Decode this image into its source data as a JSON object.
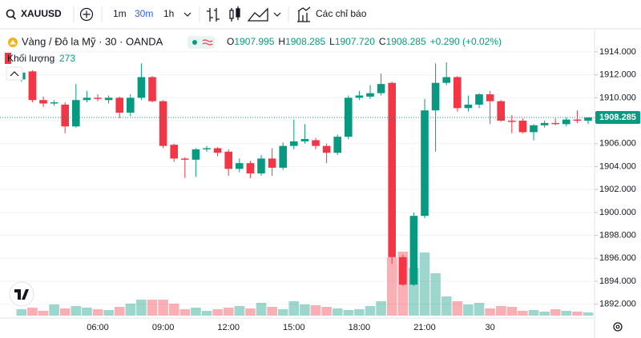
{
  "toolbar": {
    "symbol": "XAUUSD",
    "intervals": [
      "1m",
      "30m",
      "1h"
    ],
    "indicators": "Các chỉ báo"
  },
  "chart_data": {
    "type": "candlestick",
    "title": "Vàng / Đô la Mỹ · 30 · OANDA",
    "ohlc_legend": [
      {
        "key": "O",
        "value": "1907.995"
      },
      {
        "key": "H",
        "value": "1908.285"
      },
      {
        "key": "L",
        "value": "1907.720"
      },
      {
        "key": "C",
        "value": "1908.285"
      }
    ],
    "change": "+0.290 (+0.02%)",
    "volume_label": "Khối lượng",
    "up_color": "#089981",
    "down_color": "#f23645",
    "categories": [
      null,
      null,
      null,
      null,
      null,
      null,
      null,
      "06:00",
      null,
      null,
      null,
      null,
      null,
      "09:00",
      null,
      null,
      null,
      null,
      null,
      "12:00",
      null,
      null,
      null,
      null,
      null,
      "15:00",
      null,
      null,
      null,
      null,
      null,
      "18:00",
      null,
      null,
      null,
      null,
      null,
      "21:00",
      null,
      null,
      null,
      null,
      null,
      "30",
      null,
      null,
      null,
      null,
      null,
      null,
      null,
      null,
      null
    ],
    "open": [
      1911.6,
      1912.3,
      1909.8,
      1909.5,
      1909.4,
      1907.5,
      1909.8,
      1910.0,
      1909.8,
      1910.0,
      1908.7,
      1910.0,
      1911.8,
      1909.7,
      1905.9,
      1904.7,
      1904.6,
      1905.5,
      1905.6,
      1905.3,
      1903.8,
      1904.3,
      1903.4,
      1904.7,
      1903.9,
      1905.8,
      1906.2,
      1906.3,
      1905.8,
      1905.2,
      1906.6,
      1910.0,
      1910.1,
      1910.4,
      1911.3,
      1896.1,
      1893.7,
      1899.7,
      1908.9,
      1911.3,
      1911.8,
      1909.1,
      1909.4,
      1910.3,
      1909.7,
      1908.0,
      1908.0,
      1907.0,
      1907.6,
      1907.8,
      1907.7,
      1908.1,
      1907.995
    ],
    "high": [
      1912.4,
      1912.4,
      1910.1,
      1909.8,
      1909.6,
      1911.2,
      1910.6,
      1910.3,
      1910.2,
      1910.1,
      1910.3,
      1913.0,
      1911.9,
      1909.8,
      1906.0,
      1904.8,
      1905.6,
      1905.8,
      1905.7,
      1905.5,
      1904.7,
      1904.5,
      1905.0,
      1905.6,
      1906.1,
      1908.1,
      1907.7,
      1906.5,
      1906.0,
      1906.8,
      1910.2,
      1910.6,
      1911.1,
      1912.1,
      1911.4,
      1896.3,
      1900.0,
      1909.9,
      1913.0,
      1913.1,
      1911.9,
      1910.2,
      1910.4,
      1910.6,
      1909.8,
      1908.5,
      1908.2,
      1907.7,
      1908.0,
      1908.2,
      1908.3,
      1908.9,
      1908.285
    ],
    "low": [
      1911.4,
      1909.6,
      1909.2,
      1909.3,
      1906.9,
      1907.4,
      1909.6,
      1909.7,
      1909.5,
      1908.2,
      1908.4,
      1909.8,
      1909.6,
      1905.6,
      1904.4,
      1903.0,
      1903.1,
      1905.3,
      1904.9,
      1903.2,
      1903.5,
      1903.0,
      1903.2,
      1903.2,
      1903.7,
      1905.5,
      1906.0,
      1905.5,
      1904.3,
      1905.0,
      1906.4,
      1909.8,
      1909.9,
      1910.2,
      1895.5,
      1893.6,
      1893.6,
      1899.5,
      1905.3,
      1911.1,
      1908.8,
      1908.8,
      1909.1,
      1907.7,
      1907.9,
      1906.9,
      1906.9,
      1906.3,
      1907.4,
      1907.6,
      1907.5,
      1907.8,
      1907.72
    ],
    "close": [
      1912.2,
      1909.8,
      1909.5,
      1909.6,
      1907.5,
      1909.8,
      1910.0,
      1909.9,
      1910.0,
      1908.7,
      1910.0,
      1911.8,
      1909.7,
      1905.8,
      1904.7,
      1904.6,
      1905.5,
      1905.6,
      1905.2,
      1903.8,
      1904.3,
      1903.4,
      1904.7,
      1903.9,
      1905.8,
      1906.2,
      1906.4,
      1905.8,
      1905.2,
      1906.6,
      1910.0,
      1910.2,
      1910.4,
      1911.2,
      1896.1,
      1893.7,
      1899.7,
      1908.9,
      1911.3,
      1911.8,
      1909.1,
      1909.4,
      1910.3,
      1909.7,
      1908.0,
      1907.9,
      1907.0,
      1907.6,
      1907.8,
      1907.7,
      1908.1,
      1908.0,
      1908.285
    ],
    "volume": [
      544,
      680,
      408,
      952,
      612,
      816,
      680,
      544,
      476,
      748,
      1020,
      1360,
      1360,
      1360,
      1020,
      544,
      680,
      408,
      544,
      680,
      816,
      612,
      1088,
      748,
      544,
      1224,
      952,
      884,
      748,
      612,
      476,
      544,
      816,
      1224,
      4964,
      5440,
      4080,
      5372,
      3604,
      1632,
      1224,
      952,
      1088,
      612,
      816,
      748,
      408,
      476,
      340,
      544,
      408,
      340,
      273
    ],
    "ylim": [
      1891,
      1915.3
    ],
    "yticks": [
      {
        "value": 1892,
        "label": "1892.000"
      },
      {
        "value": 1894,
        "label": "1894.000"
      },
      {
        "value": 1896,
        "label": "1896.000"
      },
      {
        "value": 1898,
        "label": "1898.000"
      },
      {
        "value": 1900,
        "label": "1900.000"
      },
      {
        "value": 1902,
        "label": "1902.000"
      },
      {
        "value": 1904,
        "label": "1904.000"
      },
      {
        "value": 1906,
        "label": "1906.000"
      },
      {
        "value": 1908,
        "label": "1908.000"
      },
      {
        "value": 1910,
        "label": "1910.000"
      },
      {
        "value": 1912,
        "label": "1912.000"
      },
      {
        "value": 1914,
        "label": "1914.000"
      }
    ],
    "price_line": {
      "value": 1908.285,
      "label": "1908.285"
    },
    "grid": true
  }
}
